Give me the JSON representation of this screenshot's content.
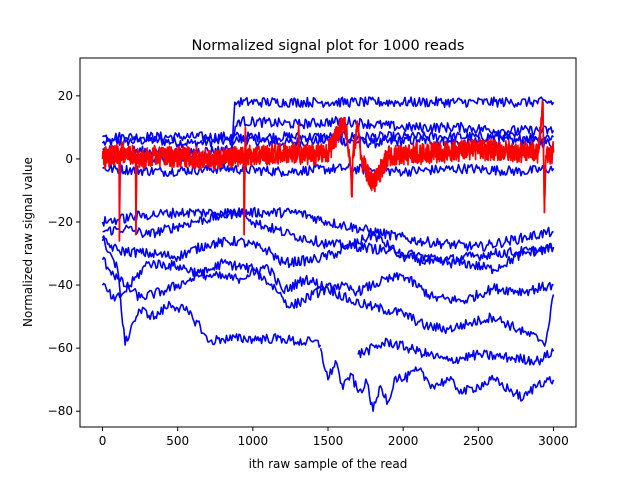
{
  "chart_data": {
    "type": "line",
    "title": "Normalized signal plot for 1000 reads",
    "xlabel": "ith raw sample of the read",
    "ylabel": "Normalized raw signal value",
    "xlim": [
      -150,
      3150
    ],
    "ylim": [
      -85,
      32
    ],
    "xticks": [
      0,
      500,
      1000,
      1500,
      2000,
      2500,
      3000
    ],
    "yticks": [
      20,
      0,
      -20,
      -40,
      -60,
      -80
    ],
    "ytick_labels": [
      "20",
      "0",
      "−20",
      "−40",
      "−60",
      "−80"
    ],
    "grid": false,
    "legend": "none",
    "colors": {
      "normal_reads": "#0000ff",
      "highlighted_reads": "#ff0000"
    },
    "series": [
      {
        "values": [
          [
            0,
            5
          ],
          [
            300,
            6
          ],
          [
            600,
            5
          ],
          [
            900,
            6
          ],
          [
            1200,
            5
          ],
          [
            1500,
            6
          ],
          [
            1800,
            5
          ],
          [
            2100,
            6
          ],
          [
            2400,
            5
          ],
          [
            2700,
            6
          ],
          [
            3000,
            5
          ]
        ]
      },
      {
        "values": [
          [
            0,
            7
          ],
          [
            500,
            7
          ],
          [
            1000,
            7
          ],
          [
            1500,
            7
          ],
          [
            2000,
            7
          ],
          [
            2500,
            7
          ],
          [
            3000,
            7
          ]
        ]
      },
      {
        "values": [
          [
            0,
            -3
          ],
          [
            400,
            -4
          ],
          [
            800,
            -3
          ],
          [
            1200,
            -4
          ],
          [
            1600,
            -3
          ],
          [
            2000,
            -4
          ],
          [
            2400,
            -3
          ],
          [
            2800,
            -4
          ],
          [
            3000,
            -3
          ]
        ]
      },
      {
        "values": [
          [
            0,
            2
          ],
          [
            200,
            0
          ],
          [
            600,
            1
          ],
          [
            860,
            0
          ],
          [
            880,
            18
          ],
          [
            1500,
            18
          ],
          [
            2100,
            18
          ],
          [
            2700,
            18
          ],
          [
            3000,
            18
          ]
        ]
      },
      {
        "values": [
          [
            0,
            3
          ],
          [
            500,
            2
          ],
          [
            850,
            3
          ],
          [
            900,
            12
          ],
          [
            1300,
            11
          ],
          [
            1600,
            12
          ],
          [
            2000,
            10
          ],
          [
            2400,
            10
          ],
          [
            2650,
            9
          ],
          [
            3000,
            9
          ]
        ]
      },
      {
        "values": [
          [
            0,
            -23
          ],
          [
            150,
            -22
          ],
          [
            300,
            -24
          ],
          [
            600,
            -20
          ],
          [
            900,
            -17
          ],
          [
            1300,
            -17
          ],
          [
            1500,
            -20
          ],
          [
            1800,
            -23
          ],
          [
            2100,
            -26
          ],
          [
            2500,
            -28
          ],
          [
            2800,
            -25
          ],
          [
            3000,
            -23
          ]
        ]
      },
      {
        "values": [
          [
            0,
            -26
          ],
          [
            100,
            -29
          ],
          [
            300,
            -30
          ],
          [
            500,
            -31
          ],
          [
            700,
            -27
          ],
          [
            900,
            -26
          ],
          [
            1100,
            -29
          ],
          [
            1200,
            -33
          ],
          [
            1400,
            -32
          ],
          [
            1550,
            -30
          ],
          [
            1800,
            -24
          ],
          [
            2000,
            -31
          ],
          [
            2200,
            -33
          ],
          [
            2400,
            -33
          ],
          [
            2600,
            -35
          ],
          [
            2800,
            -30
          ],
          [
            3000,
            -28
          ]
        ]
      },
      {
        "values": [
          [
            0,
            -32
          ],
          [
            100,
            -38
          ],
          [
            250,
            -44
          ],
          [
            400,
            -42
          ],
          [
            600,
            -38
          ],
          [
            800,
            -33
          ],
          [
            1000,
            -35
          ],
          [
            1150,
            -41
          ],
          [
            1250,
            -47
          ],
          [
            1400,
            -43
          ],
          [
            1550,
            -40
          ],
          [
            1700,
            -42
          ],
          [
            1850,
            -39
          ],
          [
            2000,
            -37
          ],
          [
            2200,
            -44
          ],
          [
            2400,
            -45
          ],
          [
            2600,
            -41
          ],
          [
            2800,
            -42
          ],
          [
            3000,
            -40
          ]
        ]
      },
      {
        "values": [
          [
            0,
            -40
          ],
          [
            80,
            -45
          ],
          [
            150,
            -42
          ],
          [
            300,
            -33
          ],
          [
            500,
            -34
          ],
          [
            700,
            -37
          ],
          [
            900,
            -38
          ],
          [
            1100,
            -34
          ],
          [
            1200,
            -42
          ],
          [
            1350,
            -38
          ],
          [
            1500,
            -41
          ],
          [
            1650,
            -45
          ],
          [
            1800,
            -47
          ],
          [
            2000,
            -49
          ],
          [
            2150,
            -53
          ],
          [
            2300,
            -54
          ],
          [
            2450,
            -52
          ],
          [
            2600,
            -50
          ],
          [
            2800,
            -55
          ],
          [
            2950,
            -58
          ],
          [
            3000,
            -43
          ]
        ]
      },
      {
        "values": [
          [
            0,
            -25
          ],
          [
            100,
            -35
          ],
          [
            150,
            -59
          ],
          [
            200,
            -52
          ],
          [
            250,
            -48
          ],
          [
            350,
            -50
          ],
          [
            450,
            -46
          ],
          [
            550,
            -48
          ],
          [
            650,
            -53
          ],
          [
            700,
            -58
          ],
          [
            800,
            -57
          ],
          [
            950,
            -57
          ],
          [
            1100,
            -57
          ],
          [
            1200,
            -57
          ],
          [
            1300,
            -58
          ],
          [
            1400,
            -58
          ],
          [
            1450,
            -59
          ]
        ]
      },
      {
        "values": [
          [
            1450,
            -60
          ],
          [
            1500,
            -70
          ],
          [
            1550,
            -64
          ],
          [
            1600,
            -73
          ],
          [
            1650,
            -68
          ],
          [
            1700,
            -74
          ],
          [
            1760,
            -71
          ],
          [
            1800,
            -80
          ],
          [
            1850,
            -72
          ],
          [
            1900,
            -77
          ],
          [
            1950,
            -69
          ],
          [
            2000,
            -70
          ],
          [
            2100,
            -67
          ],
          [
            2200,
            -72
          ],
          [
            2300,
            -70
          ],
          [
            2400,
            -74
          ],
          [
            2500,
            -72
          ],
          [
            2600,
            -70
          ],
          [
            2700,
            -73
          ],
          [
            2800,
            -76
          ],
          [
            2900,
            -71
          ],
          [
            3000,
            -70
          ]
        ]
      },
      {
        "values": [
          [
            1700,
            -62
          ],
          [
            1900,
            -58
          ],
          [
            2100,
            -61
          ],
          [
            2300,
            -64
          ],
          [
            2500,
            -62
          ],
          [
            2700,
            -63
          ],
          [
            2900,
            -64
          ],
          [
            3000,
            -61
          ]
        ]
      },
      {
        "values": [
          [
            0,
            -20
          ],
          [
            250,
            -18
          ],
          [
            500,
            -17
          ],
          [
            750,
            -17
          ],
          [
            900,
            -17
          ],
          [
            950,
            -17
          ],
          [
            1000,
            -20
          ],
          [
            1250,
            -24
          ],
          [
            1500,
            -27
          ],
          [
            1750,
            -28
          ],
          [
            2000,
            -30
          ],
          [
            2300,
            -32
          ],
          [
            2600,
            -30
          ],
          [
            2900,
            -29
          ],
          [
            3000,
            -28
          ]
        ]
      }
    ],
    "highlight_series": [
      {
        "values": [
          [
            0,
            0
          ],
          [
            110,
            2
          ],
          [
            112,
            -26
          ],
          [
            118,
            2
          ],
          [
            220,
            1
          ],
          [
            222,
            -24
          ],
          [
            228,
            0
          ],
          [
            400,
            1
          ],
          [
            700,
            0
          ],
          [
            940,
            1
          ],
          [
            942,
            -24
          ],
          [
            950,
            10
          ],
          [
            955,
            1
          ],
          [
            1300,
            2
          ],
          [
            1305,
            11
          ],
          [
            1310,
            1
          ],
          [
            1500,
            2
          ],
          [
            1610,
            12
          ],
          [
            1640,
            3
          ],
          [
            1660,
            -12
          ],
          [
            1665,
            1
          ],
          [
            1700,
            11
          ],
          [
            1720,
            0
          ],
          [
            1800,
            -8
          ],
          [
            1900,
            1
          ],
          [
            2200,
            2
          ],
          [
            2500,
            3
          ],
          [
            2900,
            2
          ],
          [
            2930,
            18
          ],
          [
            2940,
            -17
          ],
          [
            2950,
            1
          ],
          [
            3000,
            2
          ]
        ]
      }
    ]
  }
}
